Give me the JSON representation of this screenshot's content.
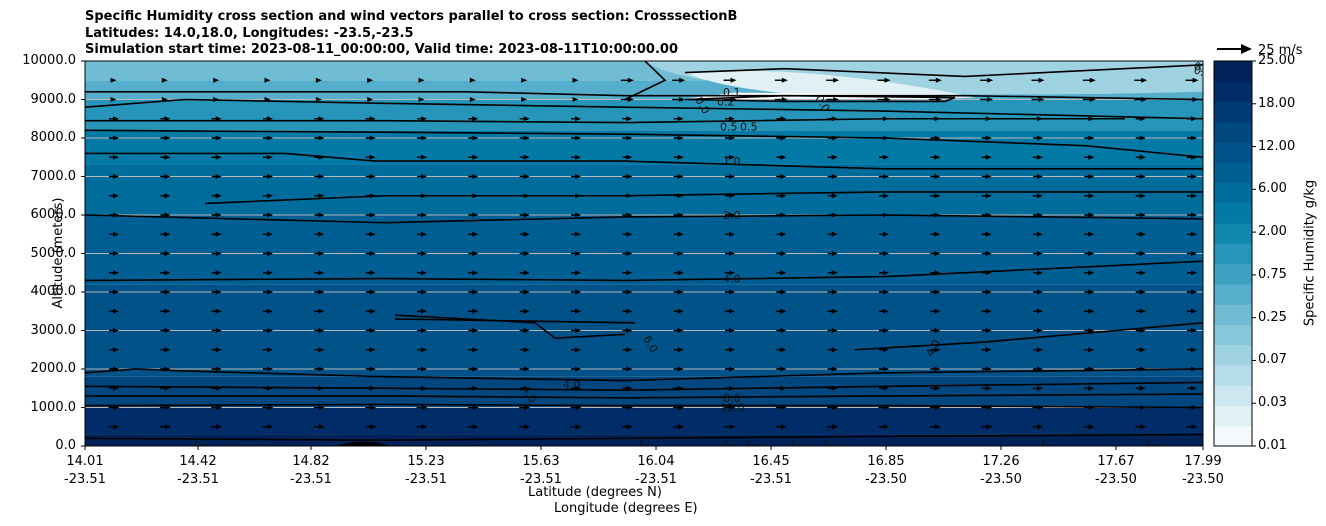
{
  "chart_data": {
    "type": "contour",
    "title_lines": [
      "Specific Humidity cross section and wind vectors parallel to cross section: CrosssectionB",
      "Latitudes: 14.0,18.0, Longitudes: -23.5,-23.5",
      "Simulation start time: 2023-08-11_00:00:00, Valid time: 2023-08-11T10:00:00.00"
    ],
    "ylabel": "Altitude (meters)",
    "xlabel_lat": "Latitude (degrees N)",
    "xlabel_lon": "Longitude (degrees E)",
    "ylim": [
      0,
      10000
    ],
    "y_ticks": [
      "0.0",
      "1000.0",
      "2000.0",
      "3000.0",
      "4000.0",
      "5000.0",
      "6000.0",
      "7000.0",
      "8000.0",
      "9000.0",
      "10000.0"
    ],
    "x_ticks": [
      {
        "lat": "14.01",
        "lon": "-23.51"
      },
      {
        "lat": "14.42",
        "lon": "-23.51"
      },
      {
        "lat": "14.82",
        "lon": "-23.51"
      },
      {
        "lat": "15.23",
        "lon": "-23.51"
      },
      {
        "lat": "15.63",
        "lon": "-23.51"
      },
      {
        "lat": "16.04",
        "lon": "-23.51"
      },
      {
        "lat": "16.45",
        "lon": "-23.51"
      },
      {
        "lat": "16.85",
        "lon": "-23.50"
      },
      {
        "lat": "17.26",
        "lon": "-23.50"
      },
      {
        "lat": "17.67",
        "lon": "-23.50"
      },
      {
        "lat": "17.99",
        "lon": "-23.50"
      }
    ],
    "colorbar": {
      "label": "Specific Humidity g/kg",
      "levels": [
        0.01,
        0.02,
        0.03,
        0.05,
        0.07,
        0.1,
        0.25,
        0.5,
        0.75,
        1.0,
        2.0,
        4.0,
        6.0,
        9.0,
        12.0,
        15.0,
        18.0,
        21.0,
        25.0
      ],
      "tick_labels": [
        "0.01",
        "0.03",
        "0.07",
        "0.25",
        "0.75",
        "2.00",
        "6.00",
        "12.00",
        "18.00",
        "25.00"
      ],
      "colors": [
        "#f4fafc",
        "#e0f0f5",
        "#cce7ef",
        "#b6dde9",
        "#a0d3e2",
        "#88c8da",
        "#70bcd2",
        "#55aecb",
        "#3da1c2",
        "#2794b9",
        "#1287af",
        "#037aa5",
        "#006c9b",
        "#005f92",
        "#005289",
        "#00467f",
        "#003a74",
        "#002d67",
        "#002258"
      ]
    },
    "reference_vector": "25 m/s",
    "contour_labels": [
      "0.0",
      "0.0",
      "0.1",
      "0.1",
      "0.2",
      "0.5",
      "0.5",
      "0.5",
      "1.0",
      "2.0",
      "4.0",
      "4.0",
      "4.0",
      "4.0",
      "6.0",
      "8.0",
      "12.0",
      "16.0",
      "16.0",
      "16.0",
      "16.0",
      "16.0",
      "16.0",
      "16.0",
      "16.0",
      "16.0"
    ],
    "grid": true
  }
}
